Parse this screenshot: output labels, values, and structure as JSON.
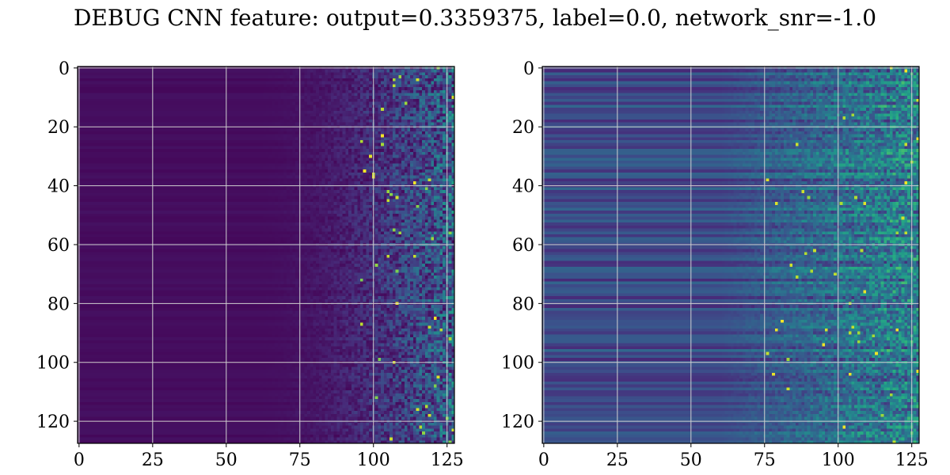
{
  "title": "DEBUG CNN feature: output=0.3359375, label=0.0, network_snr=-1.0",
  "chart_data": [
    {
      "type": "heatmap",
      "colormap": "viridis",
      "rows": 128,
      "cols": 128,
      "xlim": [
        0,
        127
      ],
      "ylim": [
        127,
        0
      ],
      "xticks": [
        "0",
        "25",
        "50",
        "75",
        "100",
        "125"
      ],
      "yticks": [
        "0",
        "20",
        "40",
        "60",
        "80",
        "100",
        "120"
      ],
      "grid": true
    },
    {
      "type": "heatmap",
      "colormap": "viridis",
      "rows": 128,
      "cols": 128,
      "xlim": [
        0,
        127
      ],
      "ylim": [
        127,
        0
      ],
      "xticks": [
        "0",
        "25",
        "50",
        "75",
        "100",
        "125"
      ],
      "yticks": [
        "0",
        "20",
        "40",
        "60",
        "80",
        "100",
        "120"
      ],
      "grid": true
    }
  ]
}
